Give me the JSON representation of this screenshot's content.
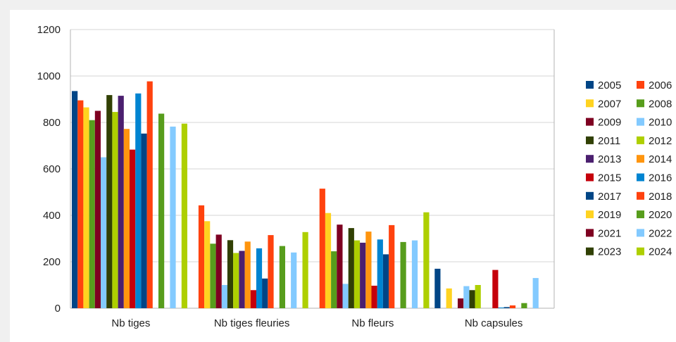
{
  "chart_data": {
    "type": "bar",
    "categories": [
      "Nb tiges",
      "Nb tiges fleuries",
      "Nb fleurs",
      "Nb capsules"
    ],
    "ylim": [
      0,
      1200
    ],
    "yticks": [
      "0",
      "200",
      "400",
      "600",
      "800",
      "1000",
      "1200"
    ],
    "grid": "horizontal",
    "legend_placement": "right",
    "series": [
      {
        "name": "2005",
        "color": "#004586",
        "values": [
          935,
          0,
          0,
          170
        ]
      },
      {
        "name": "2006",
        "color": "#ff420e",
        "values": [
          895,
          443,
          515,
          0
        ]
      },
      {
        "name": "2007",
        "color": "#ffd320",
        "values": [
          865,
          375,
          410,
          85
        ]
      },
      {
        "name": "2008",
        "color": "#579d1c",
        "values": [
          810,
          278,
          245,
          0
        ]
      },
      {
        "name": "2009",
        "color": "#7e0021",
        "values": [
          850,
          317,
          360,
          42
        ]
      },
      {
        "name": "2010",
        "color": "#83caff",
        "values": [
          650,
          100,
          105,
          95
        ]
      },
      {
        "name": "2011",
        "color": "#314004",
        "values": [
          918,
          293,
          345,
          78
        ]
      },
      {
        "name": "2012",
        "color": "#aecf00",
        "values": [
          845,
          238,
          292,
          100
        ]
      },
      {
        "name": "2013",
        "color": "#4b1f6f",
        "values": [
          915,
          247,
          282,
          0
        ]
      },
      {
        "name": "2014",
        "color": "#ff950e",
        "values": [
          772,
          287,
          330,
          0
        ]
      },
      {
        "name": "2015",
        "color": "#c5000b",
        "values": [
          683,
          78,
          97,
          165
        ]
      },
      {
        "name": "2016",
        "color": "#0084d1",
        "values": [
          925,
          258,
          296,
          3
        ]
      },
      {
        "name": "2017",
        "color": "#004586",
        "values": [
          752,
          128,
          232,
          5
        ]
      },
      {
        "name": "2018",
        "color": "#ff420e",
        "values": [
          977,
          315,
          358,
          12
        ]
      },
      {
        "name": "2019",
        "color": "#ffd320",
        "values": [
          0,
          0,
          0,
          0
        ]
      },
      {
        "name": "2020",
        "color": "#579d1c",
        "values": [
          838,
          268,
          285,
          22
        ]
      },
      {
        "name": "2021",
        "color": "#7e0021",
        "values": [
          0,
          0,
          0,
          0
        ]
      },
      {
        "name": "2022",
        "color": "#83caff",
        "values": [
          782,
          240,
          292,
          130
        ]
      },
      {
        "name": "2023",
        "color": "#314004",
        "values": [
          0,
          0,
          0,
          0
        ]
      },
      {
        "name": "2024",
        "color": "#aecf00",
        "values": [
          795,
          328,
          413,
          0
        ]
      }
    ]
  }
}
